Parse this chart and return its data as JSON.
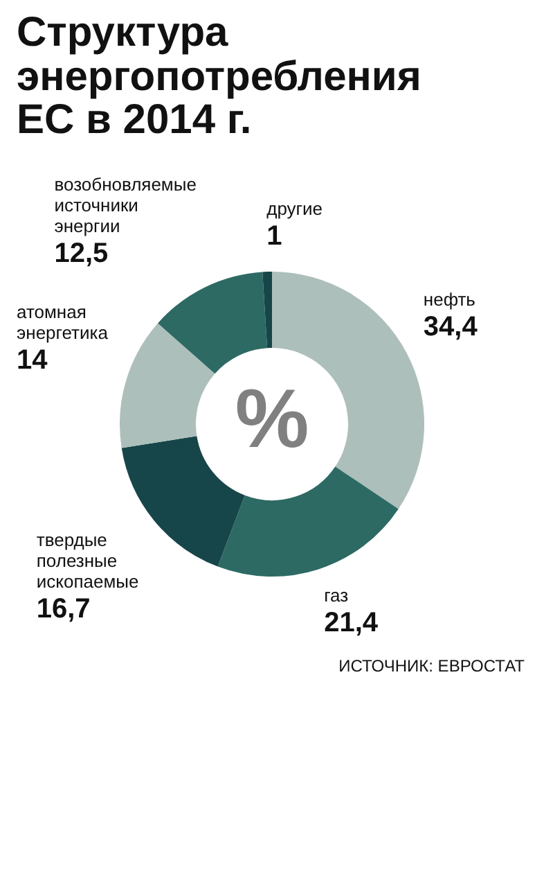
{
  "chart_data": {
    "type": "donut",
    "title": "Структура энергопотребления ЕС в 2014 г.",
    "categories": [
      "нефть",
      "газ",
      "твердые полезные ископаемые",
      "атомная энергетика",
      "возобновляемые источники энергии",
      "другие"
    ],
    "values": [
      34.4,
      21.4,
      16.7,
      14,
      12.5,
      1
    ],
    "value_labels": [
      "34,4",
      "21,4",
      "16,7",
      "14",
      "12,5",
      "1"
    ],
    "colors": [
      "#adbfbb",
      "#2d6a64",
      "#17464a",
      "#adbfbb",
      "#2d6a64",
      "#17464a"
    ],
    "annotations": [
      "%",
      "ИСТОЧНИК: ЕВРОСТАТ"
    ]
  }
}
